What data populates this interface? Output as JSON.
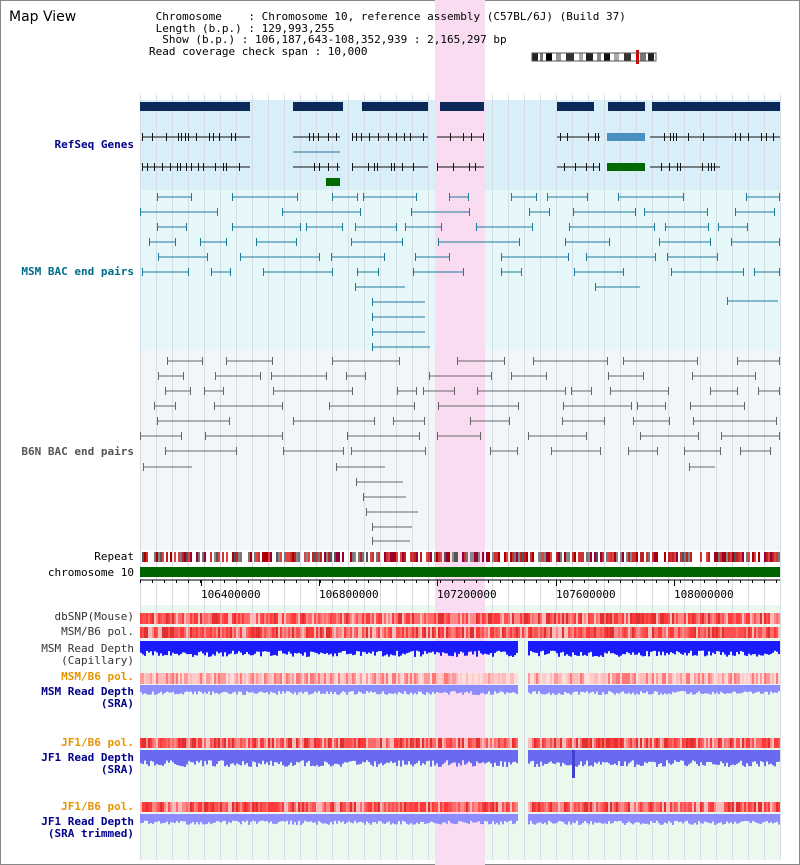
{
  "title": "Map View",
  "info": {
    "chromosome_line": " Chromosome    : Chromosome 10, reference assembly (C57BL/6J) (Build 37)",
    "length_line": " Length (b.p.) : 129,993,255",
    "show_line": "  Show (b.p.) : 106,187,643-108,352,939 : 2,165,297 bp",
    "span_line": "Read coverage check span : 10,000"
  },
  "tracks": {
    "refseq": "RefSeq Genes",
    "msm_bac": "MSM BAC end pairs",
    "b6n_bac": "B6N BAC end pairs",
    "repeat": "Repeat",
    "chromosome": "chromosome 10",
    "dbsnp": "dbSNP(Mouse)",
    "msm_b6_pol": "MSM/B6 pol.",
    "msm_depth_cap_1": "MSM Read Depth",
    "msm_depth_cap_2": "(Capillary)",
    "msm_b6_pol_2": "MSM/B6 pol.",
    "msm_depth_sra_1": "MSM Read Depth",
    "msm_depth_sra_2": "(SRA)",
    "jf1_b6_pol": "JF1/B6 pol.",
    "jf1_depth_sra_1": "JF1 Read Depth",
    "jf1_depth_sra_2": "(SRA)",
    "jf1_b6_pol_2": "JF1/B6 pol.",
    "jf1_depth_trim_1": "JF1 Read Depth",
    "jf1_depth_trim_2": "(SRA trimmed)"
  },
  "axis_ticks": [
    "106400000",
    "106800000",
    "107200000",
    "107600000",
    "108000000"
  ],
  "colors": {
    "refseq_label": "#00008b",
    "msm_label": "#006b8b",
    "b6n_label": "#555555",
    "orange_label": "#e69500",
    "blue_label": "#00008b",
    "highlight": "#f9dcf2",
    "chromosome_bar": "#006400"
  }
}
